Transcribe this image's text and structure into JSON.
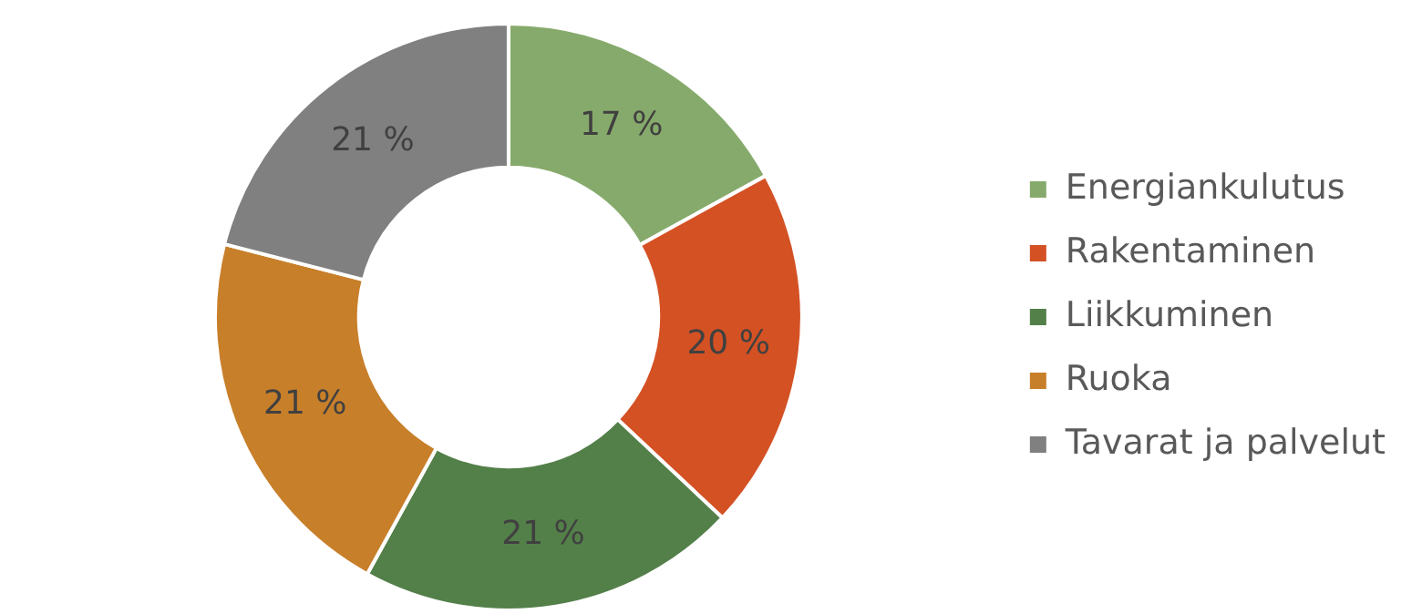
{
  "chart_data": {
    "type": "donut",
    "categories": [
      "Energiankulutus",
      "Rakentaminen",
      "Liikkuminen",
      "Ruoka",
      "Tavarat ja palvelut"
    ],
    "values": [
      17,
      20,
      21,
      21,
      21
    ],
    "colors": [
      "#86aa6b",
      "#d45124",
      "#538049",
      "#c87f2a",
      "#808080"
    ],
    "value_labels": [
      "17 %",
      "20 %",
      "21 %",
      "21 %",
      "21 %"
    ],
    "legend": "right"
  }
}
